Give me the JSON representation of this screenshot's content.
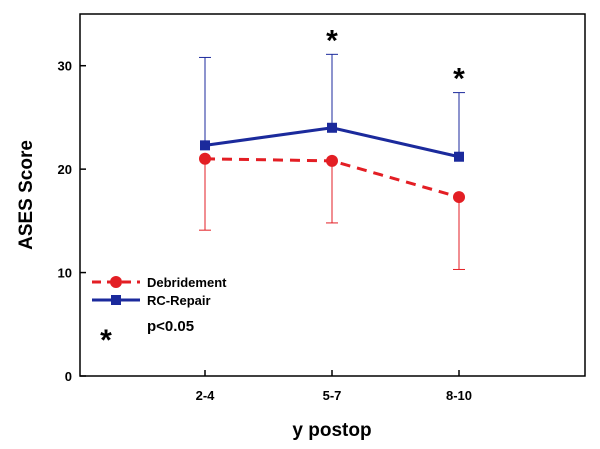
{
  "chart_data": {
    "type": "line",
    "categories": [
      "2-4",
      "5-7",
      "8-10"
    ],
    "xlabel": "y postop",
    "ylabel": "ASES Score",
    "ylim": [
      0,
      35
    ],
    "yticks": [
      0,
      10,
      20,
      30
    ],
    "grid": false,
    "legend_position": "bottom-left",
    "series": [
      {
        "name": "Debridement",
        "values": [
          21.0,
          20.8,
          17.3
        ],
        "error_low": [
          14.1,
          14.8,
          10.3
        ],
        "error_high": [
          21.0,
          20.8,
          17.3
        ],
        "color": "#e31e24",
        "line_style": "dashed",
        "marker": "circle"
      },
      {
        "name": "RC-Repair",
        "values": [
          22.3,
          24.0,
          21.2
        ],
        "error_low": [
          22.3,
          24.0,
          21.2
        ],
        "error_high": [
          30.8,
          31.1,
          27.4
        ],
        "color": "#1b2a9c",
        "line_style": "solid",
        "marker": "square"
      }
    ],
    "significance": {
      "symbol": "*",
      "label": "p<0.05",
      "categories": [
        "5-7",
        "8-10"
      ]
    }
  }
}
